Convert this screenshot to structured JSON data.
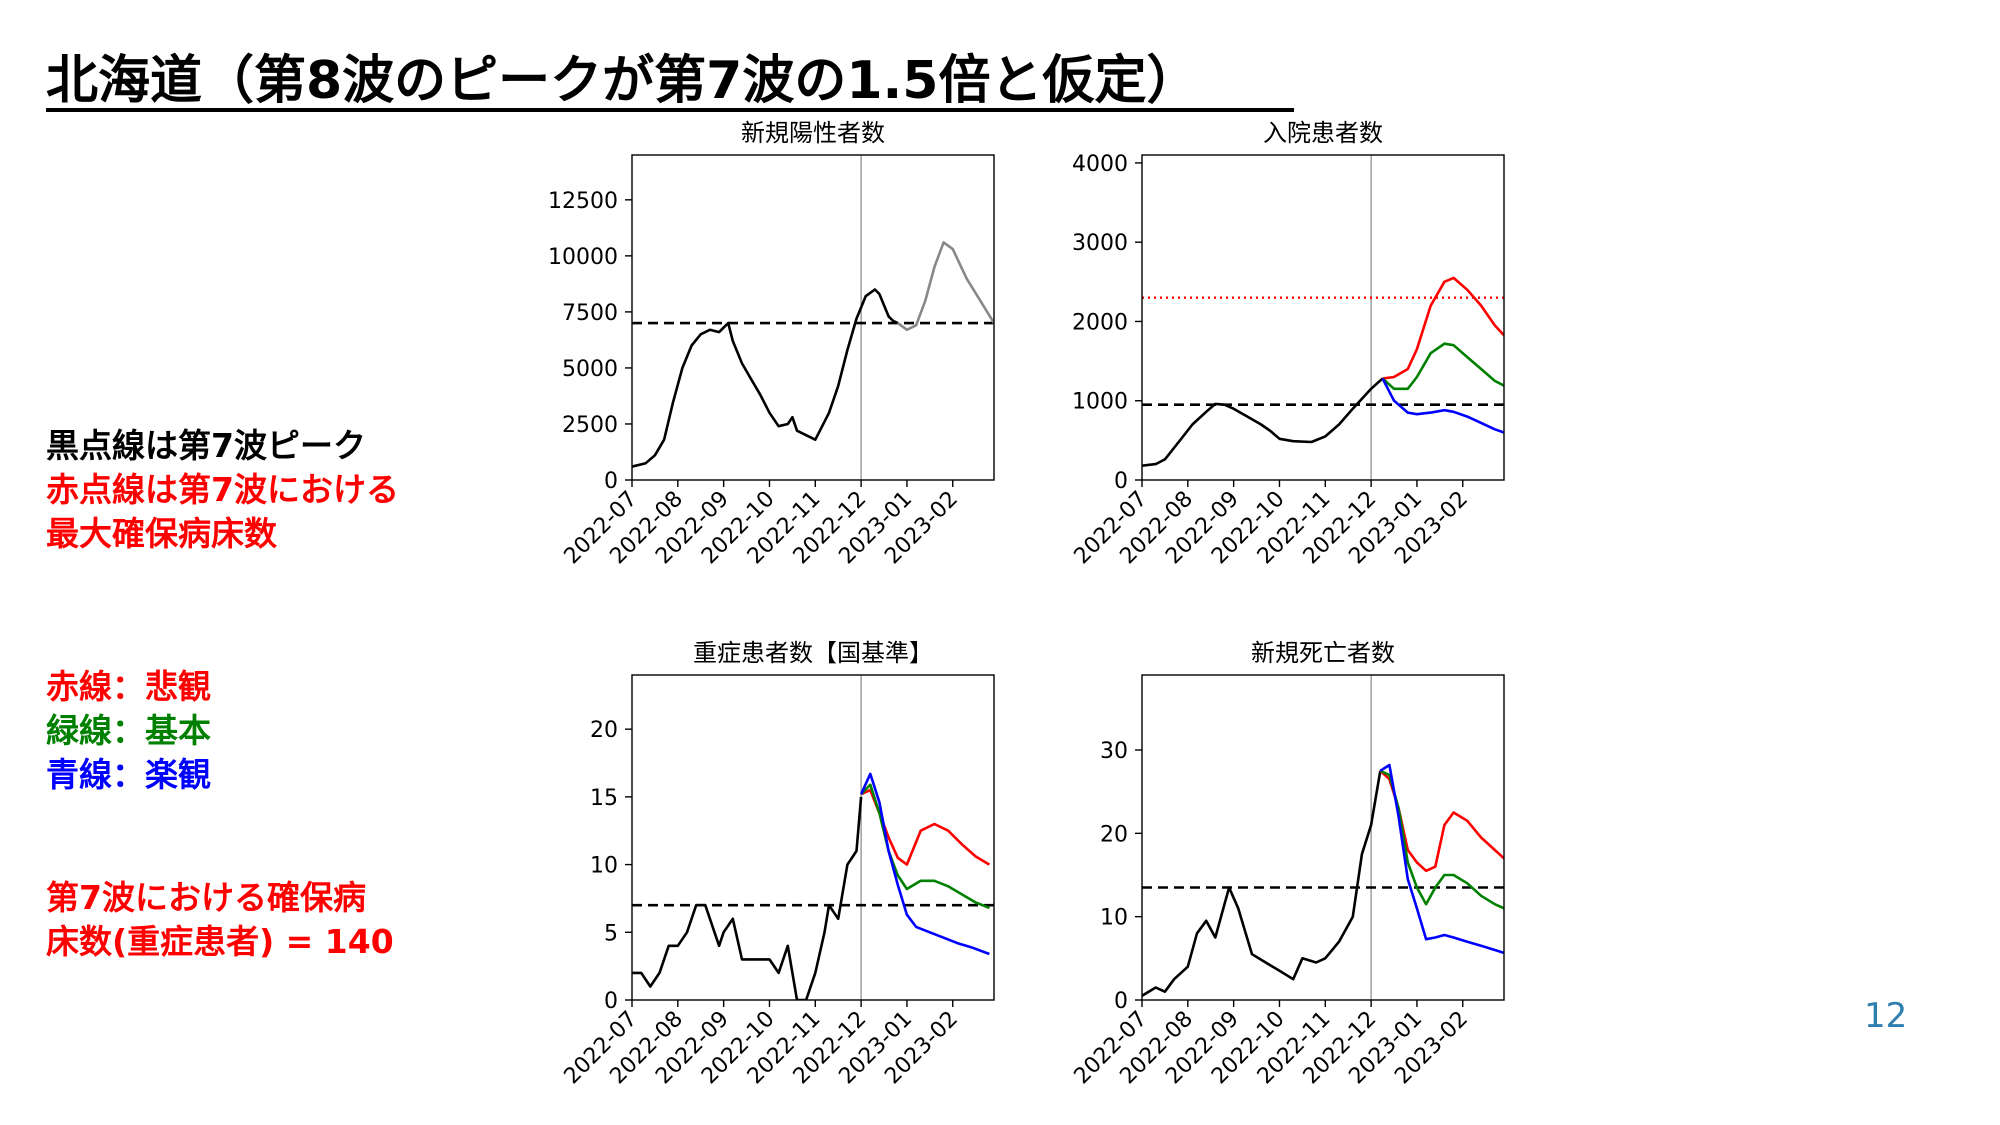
{
  "slide": {
    "title": "北海道（第8波のピークが第7波の1.5倍と仮定）",
    "page_number": "12",
    "notes": [
      {
        "text": "黒点線は第7波ピーク",
        "color": "#000000"
      },
      {
        "text": "赤点線は第7波における",
        "color": "#ff0000"
      },
      {
        "text": "最大確保病床数",
        "color": "#ff0000"
      },
      {
        "text": "赤線：悲観",
        "color": "#ff0000"
      },
      {
        "text": "緑線：基本",
        "color": "#008000"
      },
      {
        "text": "青線：楽観",
        "color": "#0000ff"
      },
      {
        "text": "第7波における確保病",
        "color": "#ff0000"
      },
      {
        "text": "床数(重症患者) = 140",
        "color": "#ff0000"
      }
    ]
  },
  "colors": {
    "black": "#000000",
    "red": "#ff0000",
    "green": "#008000",
    "blue": "#0000ff",
    "forecast_gray": "#888888",
    "page_number": "#2e7fb0"
  },
  "chart_data": [
    {
      "type": "line",
      "title": "新規陽性者数",
      "x_ticks": [
        "2022-07",
        "2022-08",
        "2022-09",
        "2022-10",
        "2022-11",
        "2022-12",
        "2023-01",
        "2023-02"
      ],
      "xlim": [
        0,
        7.9
      ],
      "ylim": [
        0,
        14500
      ],
      "y_ticks": [
        0,
        2500,
        5000,
        7500,
        10000,
        12500
      ],
      "vline_x": 5.0,
      "hlines": [
        {
          "y": 7000,
          "style": "dashed",
          "color": "#000000"
        }
      ],
      "series": [
        {
          "color": "#000000",
          "points": [
            [
              0,
              600
            ],
            [
              0.3,
              750
            ],
            [
              0.5,
              1100
            ],
            [
              0.7,
              1800
            ],
            [
              0.9,
              3500
            ],
            [
              1.1,
              5000
            ],
            [
              1.3,
              6000
            ],
            [
              1.5,
              6500
            ],
            [
              1.7,
              6700
            ],
            [
              1.9,
              6600
            ],
            [
              2.1,
              7000
            ],
            [
              2.2,
              6200
            ],
            [
              2.4,
              5200
            ],
            [
              2.6,
              4500
            ],
            [
              2.8,
              3800
            ],
            [
              3.0,
              3000
            ],
            [
              3.2,
              2400
            ],
            [
              3.4,
              2500
            ],
            [
              3.5,
              2800
            ],
            [
              3.6,
              2200
            ],
            [
              3.8,
              2000
            ],
            [
              4.0,
              1800
            ],
            [
              4.1,
              2200
            ],
            [
              4.3,
              3000
            ],
            [
              4.5,
              4200
            ],
            [
              4.7,
              5800
            ],
            [
              4.9,
              7200
            ],
            [
              5.1,
              8200
            ],
            [
              5.3,
              8500
            ],
            [
              5.4,
              8300
            ],
            [
              5.5,
              7800
            ],
            [
              5.6,
              7300
            ],
            [
              5.7,
              7100
            ],
            [
              5.8,
              7000
            ]
          ]
        },
        {
          "color": "#888888",
          "points": [
            [
              5.8,
              7000
            ],
            [
              6.0,
              6700
            ],
            [
              6.2,
              6900
            ],
            [
              6.4,
              8000
            ],
            [
              6.6,
              9500
            ],
            [
              6.8,
              10600
            ],
            [
              7.0,
              10300
            ],
            [
              7.3,
              9000
            ],
            [
              7.6,
              8000
            ],
            [
              7.9,
              7000
            ],
            [
              8.1,
              6600
            ]
          ]
        }
      ]
    },
    {
      "type": "line",
      "title": "入院患者数",
      "x_ticks": [
        "2022-07",
        "2022-08",
        "2022-09",
        "2022-10",
        "2022-11",
        "2022-12",
        "2023-01",
        "2023-02"
      ],
      "xlim": [
        0,
        7.9
      ],
      "ylim": [
        0,
        4100
      ],
      "y_ticks": [
        0,
        1000,
        2000,
        3000,
        4000
      ],
      "vline_x": 5.0,
      "hlines": [
        {
          "y": 950,
          "style": "dashed",
          "color": "#000000"
        },
        {
          "y": 2300,
          "style": "dotted",
          "color": "#ff0000"
        }
      ],
      "series": [
        {
          "color": "#000000",
          "points": [
            [
              0,
              180
            ],
            [
              0.3,
              200
            ],
            [
              0.5,
              260
            ],
            [
              0.8,
              480
            ],
            [
              1.1,
              700
            ],
            [
              1.4,
              860
            ],
            [
              1.6,
              960
            ],
            [
              1.8,
              950
            ],
            [
              2.0,
              900
            ],
            [
              2.3,
              800
            ],
            [
              2.6,
              700
            ],
            [
              2.8,
              620
            ],
            [
              3.0,
              520
            ],
            [
              3.3,
              490
            ],
            [
              3.7,
              480
            ],
            [
              4.0,
              550
            ],
            [
              4.3,
              700
            ],
            [
              4.6,
              900
            ],
            [
              5.0,
              1150
            ],
            [
              5.25,
              1280
            ]
          ]
        },
        {
          "color": "#ff0000",
          "points": [
            [
              5.25,
              1280
            ],
            [
              5.5,
              1300
            ],
            [
              5.8,
              1400
            ],
            [
              6.0,
              1650
            ],
            [
              6.3,
              2200
            ],
            [
              6.6,
              2500
            ],
            [
              6.8,
              2550
            ],
            [
              7.1,
              2400
            ],
            [
              7.4,
              2200
            ],
            [
              7.7,
              1950
            ],
            [
              8.1,
              1700
            ]
          ]
        },
        {
          "color": "#008000",
          "points": [
            [
              5.25,
              1280
            ],
            [
              5.5,
              1150
            ],
            [
              5.8,
              1150
            ],
            [
              6.0,
              1300
            ],
            [
              6.3,
              1600
            ],
            [
              6.6,
              1720
            ],
            [
              6.8,
              1700
            ],
            [
              7.1,
              1550
            ],
            [
              7.4,
              1400
            ],
            [
              7.7,
              1250
            ],
            [
              8.1,
              1130
            ]
          ]
        },
        {
          "color": "#0000ff",
          "points": [
            [
              5.25,
              1280
            ],
            [
              5.5,
              1000
            ],
            [
              5.8,
              850
            ],
            [
              6.0,
              830
            ],
            [
              6.3,
              850
            ],
            [
              6.6,
              880
            ],
            [
              6.8,
              860
            ],
            [
              7.1,
              800
            ],
            [
              7.4,
              720
            ],
            [
              7.7,
              640
            ],
            [
              8.1,
              560
            ]
          ]
        }
      ]
    },
    {
      "type": "line",
      "title": "重症患者数【国基準】",
      "x_ticks": [
        "2022-07",
        "2022-08",
        "2022-09",
        "2022-10",
        "2022-11",
        "2022-12",
        "2023-01",
        "2023-02"
      ],
      "xlim": [
        0,
        7.9
      ],
      "ylim": [
        0,
        24
      ],
      "y_ticks": [
        0,
        5,
        10,
        15,
        20
      ],
      "vline_x": 5.0,
      "hlines": [
        {
          "y": 7,
          "style": "dashed",
          "color": "#000000"
        }
      ],
      "series": [
        {
          "color": "#000000",
          "points": [
            [
              0,
              2
            ],
            [
              0.2,
              2
            ],
            [
              0.4,
              1
            ],
            [
              0.6,
              2
            ],
            [
              0.8,
              4
            ],
            [
              1.0,
              4
            ],
            [
              1.2,
              5
            ],
            [
              1.4,
              7
            ],
            [
              1.6,
              7
            ],
            [
              1.8,
              5
            ],
            [
              1.9,
              4
            ],
            [
              2.0,
              5
            ],
            [
              2.2,
              6
            ],
            [
              2.4,
              3
            ],
            [
              2.6,
              3
            ],
            [
              2.8,
              3
            ],
            [
              3.0,
              3
            ],
            [
              3.2,
              2
            ],
            [
              3.4,
              4
            ],
            [
              3.6,
              0
            ],
            [
              3.8,
              0
            ],
            [
              4.0,
              2
            ],
            [
              4.2,
              5
            ],
            [
              4.3,
              7
            ],
            [
              4.5,
              6
            ],
            [
              4.7,
              10
            ],
            [
              4.9,
              11
            ],
            [
              5.0,
              15
            ]
          ]
        },
        {
          "color": "#ff0000",
          "points": [
            [
              5.0,
              15.2
            ],
            [
              5.2,
              15.5
            ],
            [
              5.4,
              13.8
            ],
            [
              5.6,
              12.0
            ],
            [
              5.8,
              10.5
            ],
            [
              6.0,
              10.0
            ],
            [
              6.3,
              12.5
            ],
            [
              6.6,
              13.0
            ],
            [
              6.9,
              12.5
            ],
            [
              7.2,
              11.5
            ],
            [
              7.5,
              10.6
            ],
            [
              7.8,
              10.0
            ]
          ]
        },
        {
          "color": "#008000",
          "points": [
            [
              5.0,
              15.2
            ],
            [
              5.2,
              15.9
            ],
            [
              5.4,
              13.8
            ],
            [
              5.6,
              11.0
            ],
            [
              5.8,
              9.2
            ],
            [
              6.0,
              8.2
            ],
            [
              6.3,
              8.8
            ],
            [
              6.6,
              8.8
            ],
            [
              6.9,
              8.4
            ],
            [
              7.2,
              7.8
            ],
            [
              7.5,
              7.2
            ],
            [
              7.8,
              6.8
            ]
          ]
        },
        {
          "color": "#0000ff",
          "points": [
            [
              5.0,
              15.2
            ],
            [
              5.2,
              16.7
            ],
            [
              5.4,
              14.6
            ],
            [
              5.6,
              11.0
            ],
            [
              5.8,
              8.5
            ],
            [
              6.0,
              6.3
            ],
            [
              6.2,
              5.4
            ],
            [
              6.5,
              5.0
            ],
            [
              6.8,
              4.6
            ],
            [
              7.1,
              4.2
            ],
            [
              7.4,
              3.9
            ],
            [
              7.8,
              3.4
            ]
          ]
        }
      ]
    },
    {
      "type": "line",
      "title": "新規死亡者数",
      "x_ticks": [
        "2022-07",
        "2022-08",
        "2022-09",
        "2022-10",
        "2022-11",
        "2022-12",
        "2023-01",
        "2023-02"
      ],
      "xlim": [
        0,
        7.9
      ],
      "ylim": [
        0,
        39
      ],
      "y_ticks": [
        0,
        10,
        20,
        30
      ],
      "vline_x": 5.0,
      "hlines": [
        {
          "y": 13.5,
          "style": "dashed",
          "color": "#000000"
        }
      ],
      "series": [
        {
          "color": "#000000",
          "points": [
            [
              0,
              0.5
            ],
            [
              0.3,
              1.5
            ],
            [
              0.5,
              1.0
            ],
            [
              0.7,
              2.5
            ],
            [
              1.0,
              4.0
            ],
            [
              1.2,
              8.0
            ],
            [
              1.4,
              9.5
            ],
            [
              1.6,
              7.5
            ],
            [
              1.9,
              13.5
            ],
            [
              2.1,
              11.0
            ],
            [
              2.4,
              5.5
            ],
            [
              2.7,
              4.5
            ],
            [
              3.0,
              3.5
            ],
            [
              3.3,
              2.5
            ],
            [
              3.5,
              5.0
            ],
            [
              3.8,
              4.5
            ],
            [
              4.0,
              5.0
            ],
            [
              4.3,
              7.0
            ],
            [
              4.6,
              10.0
            ],
            [
              4.8,
              17.5
            ],
            [
              5.0,
              21.0
            ],
            [
              5.2,
              27.5
            ]
          ]
        },
        {
          "color": "#ff0000",
          "points": [
            [
              5.2,
              27.5
            ],
            [
              5.4,
              26.5
            ],
            [
              5.6,
              23.0
            ],
            [
              5.8,
              18.0
            ],
            [
              6.0,
              16.5
            ],
            [
              6.2,
              15.5
            ],
            [
              6.4,
              16.0
            ],
            [
              6.6,
              21.0
            ],
            [
              6.8,
              22.5
            ],
            [
              7.1,
              21.5
            ],
            [
              7.4,
              19.5
            ],
            [
              7.7,
              18.0
            ],
            [
              8.1,
              16.0
            ]
          ]
        },
        {
          "color": "#008000",
          "points": [
            [
              5.2,
              27.5
            ],
            [
              5.4,
              27.0
            ],
            [
              5.6,
              23.0
            ],
            [
              5.8,
              16.5
            ],
            [
              6.0,
              13.5
            ],
            [
              6.2,
              11.5
            ],
            [
              6.4,
              13.5
            ],
            [
              6.6,
              15.0
            ],
            [
              6.8,
              15.0
            ],
            [
              7.1,
              14.0
            ],
            [
              7.4,
              12.5
            ],
            [
              7.7,
              11.5
            ],
            [
              8.1,
              10.5
            ]
          ]
        },
        {
          "color": "#0000ff",
          "points": [
            [
              5.2,
              27.5
            ],
            [
              5.4,
              28.2
            ],
            [
              5.6,
              22.0
            ],
            [
              5.8,
              14.5
            ],
            [
              6.0,
              11.0
            ],
            [
              6.2,
              7.3
            ],
            [
              6.4,
              7.5
            ],
            [
              6.6,
              7.8
            ],
            [
              6.8,
              7.5
            ],
            [
              7.1,
              7.0
            ],
            [
              7.4,
              6.5
            ],
            [
              7.7,
              6.0
            ],
            [
              8.1,
              5.3
            ]
          ]
        }
      ]
    }
  ]
}
